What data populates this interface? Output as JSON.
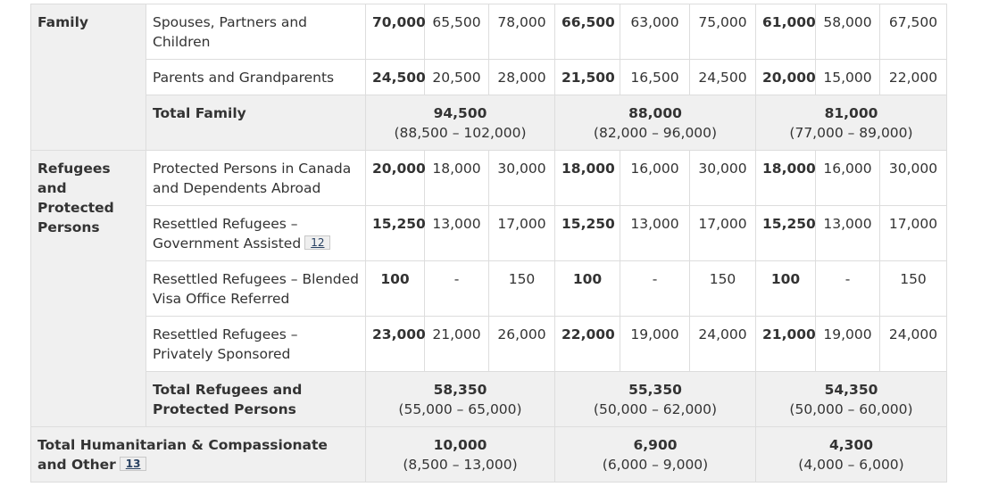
{
  "rows": {
    "family": {
      "category": "Family",
      "spouses": {
        "label": "Spouses, Partners and Children",
        "y2020": {
          "target": "70,000",
          "low": "65,500",
          "high": "78,000"
        },
        "y2021": {
          "target": "66,500",
          "low": "63,000",
          "high": "75,000"
        },
        "y2022": {
          "target": "61,000",
          "low": "58,000",
          "high": "67,500"
        }
      },
      "parents": {
        "label": "Parents and Grandparents",
        "y2020": {
          "target": "24,500",
          "low": "20,500",
          "high": "28,000"
        },
        "y2021": {
          "target": "21,500",
          "low": "16,500",
          "high": "24,500"
        },
        "y2022": {
          "target": "20,000",
          "low": "15,000",
          "high": "22,000"
        }
      },
      "total": {
        "label": "Total Family",
        "y2020": {
          "value": "94,500",
          "range": "(88,500 – 102,000)"
        },
        "y2021": {
          "value": "88,000",
          "range": "(82,000 – 96,000)"
        },
        "y2022": {
          "value": "81,000",
          "range": "(77,000 – 89,000)"
        }
      }
    },
    "refugees": {
      "category": "Refugees and Protected Persons",
      "protected": {
        "label": "Protected Persons in Canada and Dependents Abroad",
        "y2020": {
          "target": "20,000",
          "low": "18,000",
          "high": "30,000"
        },
        "y2021": {
          "target": "18,000",
          "low": "16,000",
          "high": "30,000"
        },
        "y2022": {
          "target": "18,000",
          "low": "16,000",
          "high": "30,000"
        }
      },
      "gov_assisted": {
        "label": "Resettled Refugees – Government Assisted",
        "footnote": "12",
        "y2020": {
          "target": "15,250",
          "low": "13,000",
          "high": "17,000"
        },
        "y2021": {
          "target": "15,250",
          "low": "13,000",
          "high": "17,000"
        },
        "y2022": {
          "target": "15,250",
          "low": "13,000",
          "high": "17,000"
        }
      },
      "blended": {
        "label": "Resettled Refugees – Blended Visa Office Referred",
        "y2020": {
          "target": "100",
          "low": "-",
          "high": "150"
        },
        "y2021": {
          "target": "100",
          "low": "-",
          "high": "150"
        },
        "y2022": {
          "target": "100",
          "low": "-",
          "high": "150"
        }
      },
      "private": {
        "label": "Resettled Refugees – Privately Sponsored",
        "y2020": {
          "target": "23,000",
          "low": "21,000",
          "high": "26,000"
        },
        "y2021": {
          "target": "22,000",
          "low": "19,000",
          "high": "24,000"
        },
        "y2022": {
          "target": "21,000",
          "low": "19,000",
          "high": "24,000"
        }
      },
      "total": {
        "label": "Total Refugees and Protected Persons",
        "y2020": {
          "value": "58,350",
          "range": "(55,000 – 65,000)"
        },
        "y2021": {
          "value": "55,350",
          "range": "(50,000 – 62,000)"
        },
        "y2022": {
          "value": "54,350",
          "range": "(50,000 – 60,000)"
        }
      }
    },
    "humanitarian": {
      "label": "Total Humanitarian & Compassionate and Other",
      "footnote": "13",
      "y2020": {
        "value": "10,000",
        "range": "(8,500 – 13,000)"
      },
      "y2021": {
        "value": "6,900",
        "range": "(6,000 – 9,000)"
      },
      "y2022": {
        "value": "4,300",
        "range": "(4,000 – 6,000)"
      }
    }
  }
}
